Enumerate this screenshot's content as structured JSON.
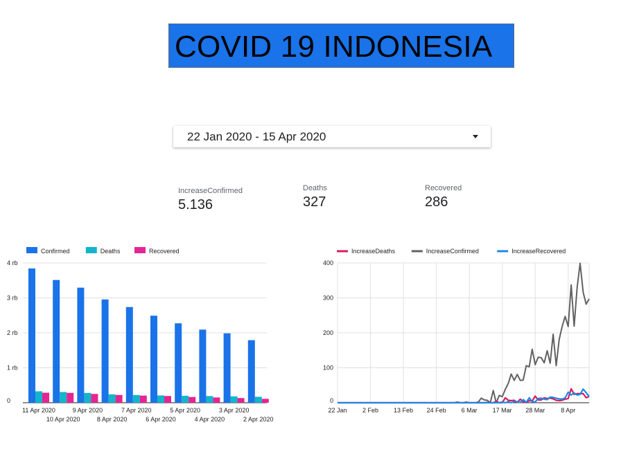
{
  "header": {
    "title": "COVID 19 INDONESIA"
  },
  "date_range": {
    "value": "22 Jan 2020 - 15 Apr 2020",
    "icon": "dropdown-arrow"
  },
  "scorecards": [
    {
      "label": "IncreaseConfirmed",
      "value": "5.136"
    },
    {
      "label": "Deaths",
      "value": "327"
    },
    {
      "label": "Recovered",
      "value": "286"
    }
  ],
  "colors": {
    "confirmed": "#1a73e8",
    "deaths": "#12b5cb",
    "recovered": "#e52592",
    "increase_deaths": "#d81b60",
    "increase_confirmed": "#616161",
    "increase_recovered": "#1e88e5",
    "title_bg": "#1a73e8"
  },
  "chart_data": [
    {
      "type": "bar",
      "legend": [
        "Confirmed",
        "Deaths",
        "Recovered"
      ],
      "legend_position": "top-left",
      "categories": [
        "11 Apr 2020",
        "10 Apr 2020",
        "9 Apr 2020",
        "8 Apr 2020",
        "7 Apr 2020",
        "6 Apr 2020",
        "5 Apr 2020",
        "4 Apr 2020",
        "3 Apr 2020",
        "2 Apr 2020"
      ],
      "series": [
        {
          "name": "Confirmed",
          "values": [
            3842,
            3512,
            3293,
            2956,
            2738,
            2491,
            2273,
            2092,
            1986,
            1790
          ]
        },
        {
          "name": "Deaths",
          "values": [
            327,
            306,
            280,
            240,
            221,
            209,
            198,
            191,
            181,
            170
          ]
        },
        {
          "name": "Recovered",
          "values": [
            286,
            282,
            252,
            222,
            204,
            192,
            164,
            150,
            134,
            112
          ]
        }
      ],
      "yticks": [
        "0",
        "1 rb",
        "2 rb",
        "3 rb",
        "4 rb"
      ],
      "ylim": [
        0,
        4000
      ],
      "grid": true
    },
    {
      "type": "line",
      "legend": [
        "IncreaseDeaths",
        "IncreaseConfirmed",
        "IncreaseRecovered"
      ],
      "legend_position": "top-center",
      "x_ticks": [
        "22 Jan",
        "2 Feb",
        "13 Feb",
        "24 Feb",
        "6 Mar",
        "17 Mar",
        "28 Mar",
        "8 Apr"
      ],
      "x_dates": [
        "2020-01-22",
        "2020-01-23",
        "2020-01-24",
        "2020-01-25",
        "2020-01-26",
        "2020-01-27",
        "2020-01-28",
        "2020-01-29",
        "2020-01-30",
        "2020-01-31",
        "2020-02-01",
        "2020-02-02",
        "2020-02-03",
        "2020-02-04",
        "2020-02-05",
        "2020-02-06",
        "2020-02-07",
        "2020-02-08",
        "2020-02-09",
        "2020-02-10",
        "2020-02-11",
        "2020-02-12",
        "2020-02-13",
        "2020-02-14",
        "2020-02-15",
        "2020-02-16",
        "2020-02-17",
        "2020-02-18",
        "2020-02-19",
        "2020-02-20",
        "2020-02-21",
        "2020-02-22",
        "2020-02-23",
        "2020-02-24",
        "2020-02-25",
        "2020-02-26",
        "2020-02-27",
        "2020-02-28",
        "2020-02-29",
        "2020-03-01",
        "2020-03-02",
        "2020-03-03",
        "2020-03-04",
        "2020-03-05",
        "2020-03-06",
        "2020-03-07",
        "2020-03-08",
        "2020-03-09",
        "2020-03-10",
        "2020-03-11",
        "2020-03-12",
        "2020-03-13",
        "2020-03-14",
        "2020-03-15",
        "2020-03-16",
        "2020-03-17",
        "2020-03-18",
        "2020-03-19",
        "2020-03-20",
        "2020-03-21",
        "2020-03-22",
        "2020-03-23",
        "2020-03-24",
        "2020-03-25",
        "2020-03-26",
        "2020-03-27",
        "2020-03-28",
        "2020-03-29",
        "2020-03-30",
        "2020-03-31",
        "2020-04-01",
        "2020-04-02",
        "2020-04-03",
        "2020-04-04",
        "2020-04-05",
        "2020-04-06",
        "2020-04-07",
        "2020-04-08",
        "2020-04-09",
        "2020-04-10",
        "2020-04-11",
        "2020-04-12",
        "2020-04-13",
        "2020-04-14",
        "2020-04-15"
      ],
      "series": [
        {
          "name": "IncreaseDeaths",
          "values": [
            0,
            0,
            0,
            0,
            0,
            0,
            0,
            0,
            0,
            0,
            0,
            0,
            0,
            0,
            0,
            0,
            0,
            0,
            0,
            0,
            0,
            0,
            0,
            0,
            0,
            0,
            0,
            0,
            0,
            0,
            0,
            0,
            0,
            0,
            0,
            0,
            0,
            0,
            0,
            0,
            0,
            0,
            0,
            0,
            0,
            0,
            0,
            0,
            0,
            0,
            1,
            0,
            0,
            4,
            0,
            0,
            14,
            7,
            6,
            7,
            1,
            10,
            3,
            0,
            6,
            5,
            19,
            8,
            8,
            14,
            12,
            13,
            11,
            7,
            6,
            7,
            10,
            12,
            40,
            24,
            26,
            26,
            26,
            14,
            18
          ]
        },
        {
          "name": "IncreaseConfirmed",
          "values": [
            0,
            0,
            0,
            0,
            0,
            0,
            0,
            0,
            0,
            0,
            0,
            0,
            0,
            0,
            0,
            0,
            0,
            0,
            0,
            0,
            0,
            0,
            0,
            0,
            0,
            0,
            0,
            0,
            0,
            0,
            0,
            0,
            0,
            0,
            0,
            0,
            0,
            0,
            0,
            0,
            2,
            0,
            0,
            2,
            0,
            0,
            0,
            2,
            13,
            8,
            7,
            0,
            35,
            0,
            21,
            17,
            38,
            55,
            82,
            64,
            81,
            64,
            65,
            106,
            103,
            153,
            109,
            130,
            129,
            114,
            149,
            113,
            196,
            106,
            181,
            218,
            247,
            218,
            337,
            219,
            330,
            399,
            316,
            282,
            297
          ]
        },
        {
          "name": "IncreaseRecovered",
          "values": [
            0,
            0,
            0,
            0,
            0,
            0,
            0,
            0,
            0,
            0,
            0,
            0,
            0,
            0,
            0,
            0,
            0,
            0,
            0,
            0,
            0,
            0,
            0,
            0,
            0,
            0,
            0,
            0,
            0,
            0,
            0,
            0,
            0,
            0,
            0,
            0,
            0,
            0,
            0,
            0,
            0,
            0,
            0,
            0,
            0,
            0,
            0,
            0,
            0,
            0,
            0,
            0,
            0,
            0,
            0,
            2,
            0,
            3,
            0,
            3,
            3,
            1,
            9,
            1,
            14,
            3,
            2,
            12,
            13,
            10,
            9,
            16,
            15,
            13,
            11,
            10,
            14,
            30,
            22,
            28,
            22,
            24,
            39,
            29,
            18
          ]
        }
      ],
      "yticks": [
        "0",
        "100",
        "200",
        "300",
        "400"
      ],
      "ylim": [
        0,
        400
      ],
      "grid": true
    }
  ]
}
